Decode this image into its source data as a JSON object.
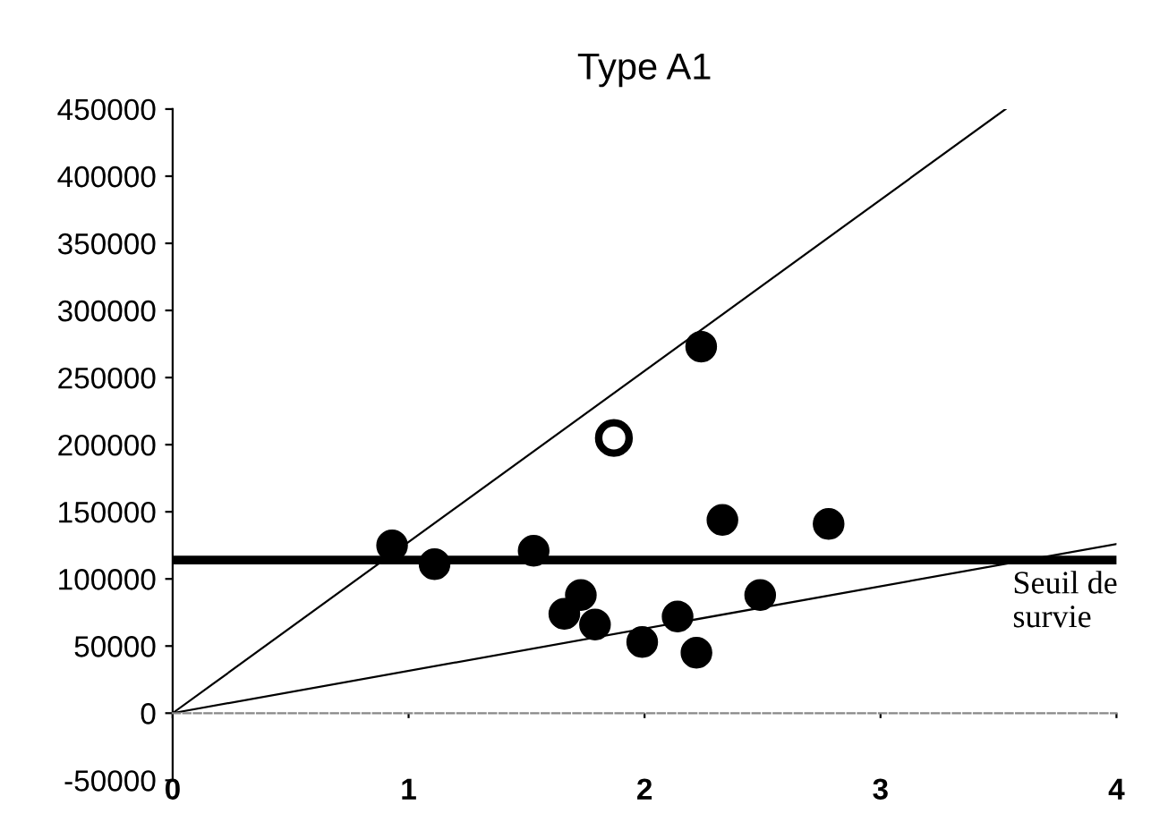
{
  "chart_data": {
    "type": "scatter",
    "title": "Type A1",
    "xlim": [
      0,
      4
    ],
    "xticks": [
      0,
      1,
      2,
      3,
      4
    ],
    "ylim": [
      -50000,
      450000
    ],
    "yticks": [
      -50000,
      0,
      50000,
      100000,
      150000,
      200000,
      250000,
      300000,
      350000,
      400000,
      450000
    ],
    "marker": "circle",
    "series": [
      {
        "color": "#000000",
        "x": [
          0.93,
          1.11,
          1.53,
          1.66,
          1.73,
          1.79,
          1.99,
          2.14,
          2.22,
          2.24,
          2.33,
          2.49,
          2.78
        ],
        "values": [
          125000,
          111000,
          121000,
          74000,
          88000,
          66000,
          53000,
          72000,
          45000,
          273000,
          144000,
          88000,
          141000
        ]
      },
      {
        "color": "#ffffff",
        "x": [
          1.87
        ],
        "values": [
          205000
        ]
      },
      {
        "type": "line",
        "color": "#000000",
        "marker": "none",
        "x": [
          0,
          3.53
        ],
        "values": [
          0,
          450000
        ]
      },
      {
        "type": "line",
        "color": "#000000",
        "marker": "none",
        "x": [
          0,
          4
        ],
        "values": [
          0,
          126000
        ]
      }
    ],
    "ref_lines": [
      {
        "axis": "y",
        "value": 114000,
        "label": "Seuil de\nsurvie",
        "color": "#000000"
      }
    ]
  }
}
